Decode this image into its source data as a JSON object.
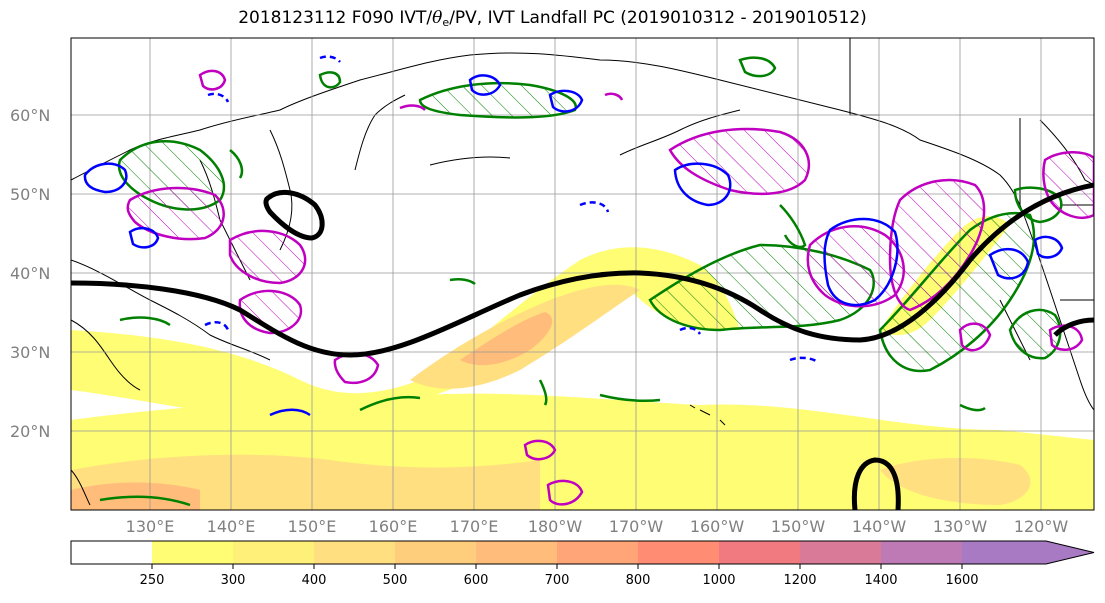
{
  "title": {
    "prefix": "2018123112 F090 IVT/",
    "theta": "θ",
    "theta_sub": "e",
    "suffix": "/PV, IVT Landfall PC (2019010312 - 2019010512)"
  },
  "lat_labels": [
    "60°N",
    "50°N",
    "40°N",
    "30°N",
    "20°N"
  ],
  "lon_labels": [
    "130°E",
    "140°E",
    "150°E",
    "160°E",
    "170°E",
    "180°W",
    "170°W",
    "160°W",
    "150°W",
    "140°W",
    "130°W",
    "120°W"
  ],
  "colorbar": {
    "labels": [
      "250",
      "300",
      "400",
      "500",
      "600",
      "700",
      "800",
      "1000",
      "1200",
      "1400",
      "1600"
    ],
    "colors": [
      "#ffffff",
      "#fffd73",
      "#fff07a",
      "#ffdf80",
      "#ffce7d",
      "#ffbc7a",
      "#ffa577",
      "#ff8c73",
      "#f07a80",
      "#d97a99",
      "#bd7ab4",
      "#a87ac4"
    ]
  },
  "legend_colors": {
    "blue_contour": "#0000ff",
    "green_contour": "#008000",
    "magenta_contour": "#c000c0",
    "black_contour": "#000000"
  }
}
